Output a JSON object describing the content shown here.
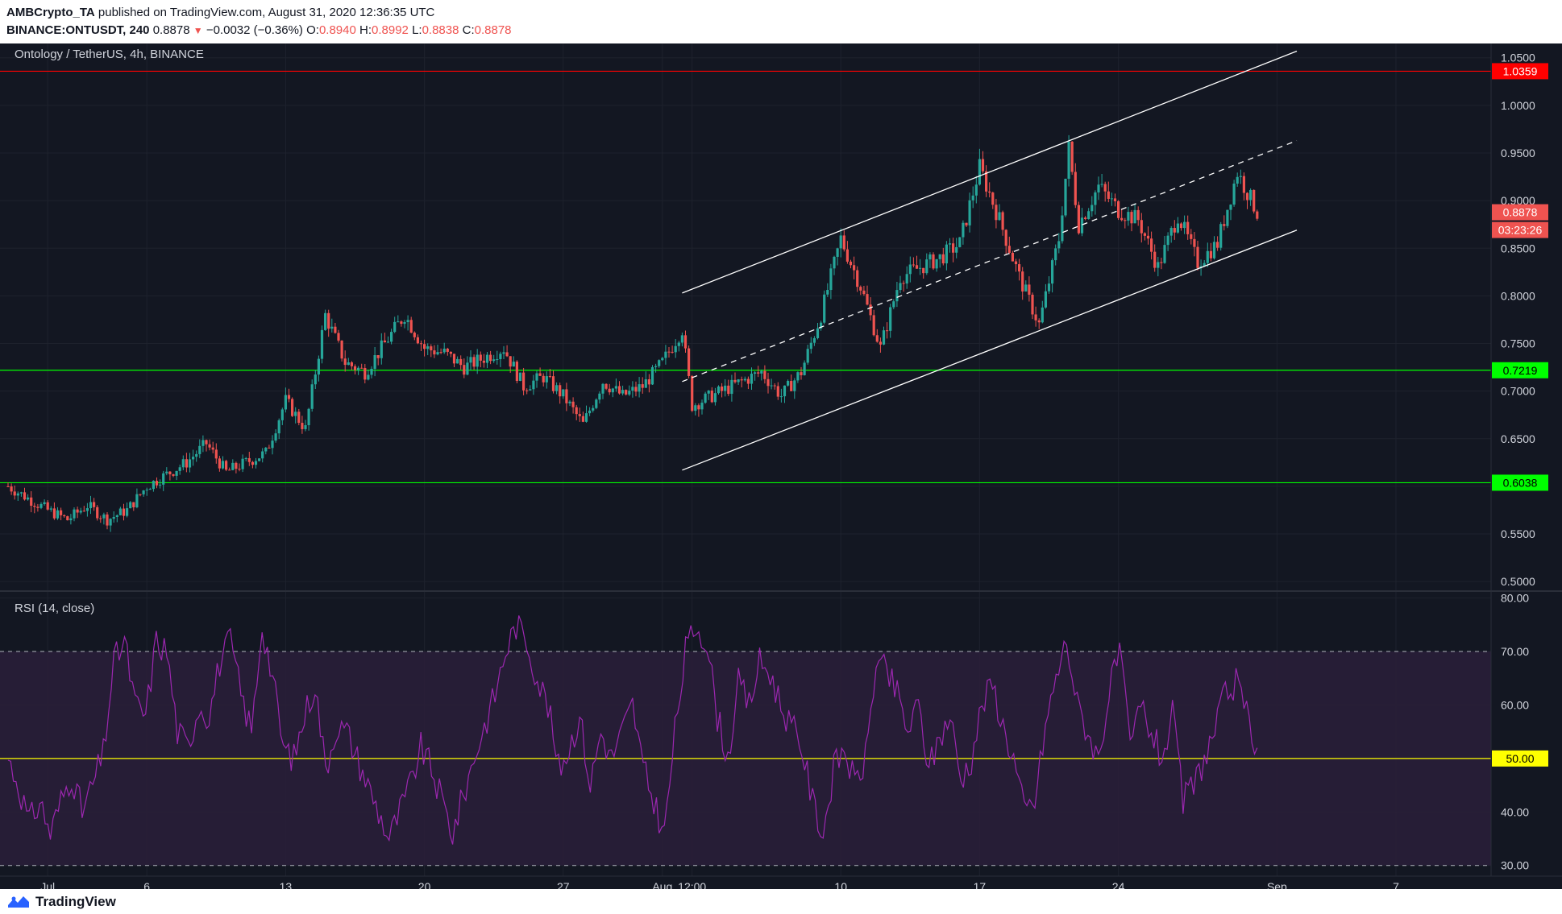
{
  "header": {
    "publisher": "AMBCrypto_TA",
    "published_text": "published on TradingView.com, August 31, 2020 12:36:35 UTC",
    "symbol": "BINANCE:ONTUSDT, 240",
    "last": "0.8878",
    "change": "−0.0032 (−0.36%)",
    "o_label": "O:",
    "o_value": "0.8940",
    "h_label": "H:",
    "h_value": "0.8992",
    "l_label": "L:",
    "l_value": "0.8838",
    "c_label": "C:",
    "c_value": "0.8878"
  },
  "footer": {
    "brand": "TradingView",
    "logo_icon": "tradingview-logo-icon"
  },
  "colors": {
    "background": "#131722",
    "grid": "#1e222d",
    "up": "#26a69a",
    "down": "#ef5350",
    "resistance": "#ff0000",
    "support": "#00ff00",
    "channel": "#ffffff",
    "rsi_line": "#9c27b0",
    "rsi_band": "#2a1e3a",
    "rsi_mid": "#ffff00"
  },
  "chart_data": [
    {
      "type": "candlestick",
      "title": "Ontology / TetherUS, 4h, BINANCE",
      "x_tick_labels": [
        "Jul",
        "6",
        "13",
        "20",
        "27",
        "Aug",
        "12:00",
        "10",
        "17",
        "24",
        "Sep",
        "7"
      ],
      "y_tick_labels": [
        "1.0500",
        "1.0000",
        "0.9500",
        "0.9000",
        "0.8500",
        "0.8000",
        "0.7500",
        "0.7000",
        "0.6500",
        "0.6000",
        "0.5500",
        "0.5000"
      ],
      "ylim": [
        0.49,
        1.065
      ],
      "horizontal_lines": [
        {
          "value": 1.0359,
          "label": "1.0359",
          "color": "#ff0000"
        },
        {
          "value": 0.7219,
          "label": "0.7219",
          "color": "#00ff00"
        },
        {
          "value": 0.6038,
          "label": "0.6038",
          "color": "#00ff00"
        }
      ],
      "last_price": {
        "value": 0.8878,
        "label": "0.8878",
        "countdown": "03:23:26"
      },
      "ascending_channel": {
        "upper": [
          [
            "Aug 2",
            0.803
          ],
          [
            "Sep 2",
            1.057
          ]
        ],
        "middle": [
          [
            "Aug 2",
            0.71
          ],
          [
            "Sep 2",
            0.963
          ]
        ],
        "lower": [
          [
            "Aug 2",
            0.617
          ],
          [
            "Sep 2",
            0.869
          ]
        ]
      },
      "price_anchors": [
        [
          "Jun 29",
          0.6
        ],
        [
          "Jul 1",
          0.575
        ],
        [
          "Jul 2",
          0.565
        ],
        [
          "Jul 3",
          0.58
        ],
        [
          "Jul 4",
          0.565
        ],
        [
          "Jul 5",
          0.575
        ],
        [
          "Jul 6",
          0.6
        ],
        [
          "Jul 8",
          0.625
        ],
        [
          "Jul 9",
          0.645
        ],
        [
          "Jul 10",
          0.615
        ],
        [
          "Jul 12",
          0.635
        ],
        [
          "Jul 13",
          0.69
        ],
        [
          "Jul 14",
          0.66
        ],
        [
          "Jul 15",
          0.78
        ],
        [
          "Jul 16",
          0.73
        ],
        [
          "Jul 17",
          0.72
        ],
        [
          "Jul 18",
          0.75
        ],
        [
          "Jul 19",
          0.78
        ],
        [
          "Jul 20",
          0.745
        ],
        [
          "Jul 21",
          0.74
        ],
        [
          "Jul 22",
          0.725
        ],
        [
          "Jul 24",
          0.745
        ],
        [
          "Jul 25",
          0.705
        ],
        [
          "Jul 26",
          0.715
        ],
        [
          "Jul 27",
          0.695
        ],
        [
          "Jul 28",
          0.665
        ],
        [
          "Jul 29",
          0.71
        ],
        [
          "Jul 30",
          0.695
        ],
        [
          "Jul 31",
          0.705
        ],
        [
          "Aug 1",
          0.73
        ],
        [
          "Aug 2",
          0.765
        ],
        [
          "Aug 2 12:00",
          0.685
        ],
        [
          "Aug 4",
          0.7
        ],
        [
          "Aug 5",
          0.71
        ],
        [
          "Aug 6",
          0.72
        ],
        [
          "Aug 7",
          0.695
        ],
        [
          "Aug 8",
          0.72
        ],
        [
          "Aug 9",
          0.78
        ],
        [
          "Aug 10",
          0.86
        ],
        [
          "Aug 11",
          0.81
        ],
        [
          "Aug 12",
          0.745
        ],
        [
          "Aug 13",
          0.82
        ],
        [
          "Aug 14",
          0.83
        ],
        [
          "Aug 15",
          0.84
        ],
        [
          "Aug 16",
          0.855
        ],
        [
          "Aug 17",
          0.935
        ],
        [
          "Aug 18",
          0.88
        ],
        [
          "Aug 19",
          0.82
        ],
        [
          "Aug 20",
          0.77
        ],
        [
          "Aug 21",
          0.86
        ],
        [
          "Aug 21 12:00",
          0.955
        ],
        [
          "Aug 22",
          0.875
        ],
        [
          "Aug 23",
          0.915
        ],
        [
          "Aug 24",
          0.89
        ],
        [
          "Aug 25",
          0.88
        ],
        [
          "Aug 26",
          0.83
        ],
        [
          "Aug 27",
          0.885
        ],
        [
          "Aug 28",
          0.835
        ],
        [
          "Aug 29",
          0.855
        ],
        [
          "Aug 30",
          0.93
        ],
        [
          "Aug 31",
          0.8878
        ]
      ]
    },
    {
      "type": "line",
      "title": "RSI (14, close)",
      "y_tick_labels": [
        "80.00",
        "70.00",
        "60.00",
        "50.00",
        "40.00",
        "30.00"
      ],
      "ylim": [
        28,
        81
      ],
      "band": [
        30,
        70
      ],
      "midline": {
        "value": 50,
        "label": "50.00"
      },
      "series": [
        {
          "values": [
            50,
            45,
            38,
            42,
            36,
            42,
            47,
            40,
            45,
            51,
            68,
            72,
            60,
            58,
            72,
            70,
            55,
            52,
            60,
            58,
            68,
            72,
            62,
            55,
            75,
            65,
            52,
            50,
            58,
            64,
            48,
            56,
            55,
            50,
            45,
            40,
            35,
            40,
            45,
            52,
            48,
            42,
            36,
            43,
            50,
            56,
            62,
            70,
            75,
            72,
            65,
            60,
            48,
            52,
            58,
            45,
            55,
            50,
            55,
            60,
            48,
            42,
            36,
            55,
            70,
            75,
            72,
            58,
            50,
            64,
            60,
            68,
            66,
            60,
            56,
            52,
            42,
            36,
            48,
            52,
            45,
            50,
            68,
            66,
            62,
            55,
            60,
            48,
            54,
            58,
            46,
            50,
            60,
            64,
            56,
            50,
            40,
            42,
            56,
            65,
            72,
            60,
            55,
            50,
            62,
            70,
            52,
            60,
            55,
            50,
            58,
            42,
            45,
            50,
            55,
            62,
            64,
            58,
            52
          ]
        }
      ]
    }
  ]
}
